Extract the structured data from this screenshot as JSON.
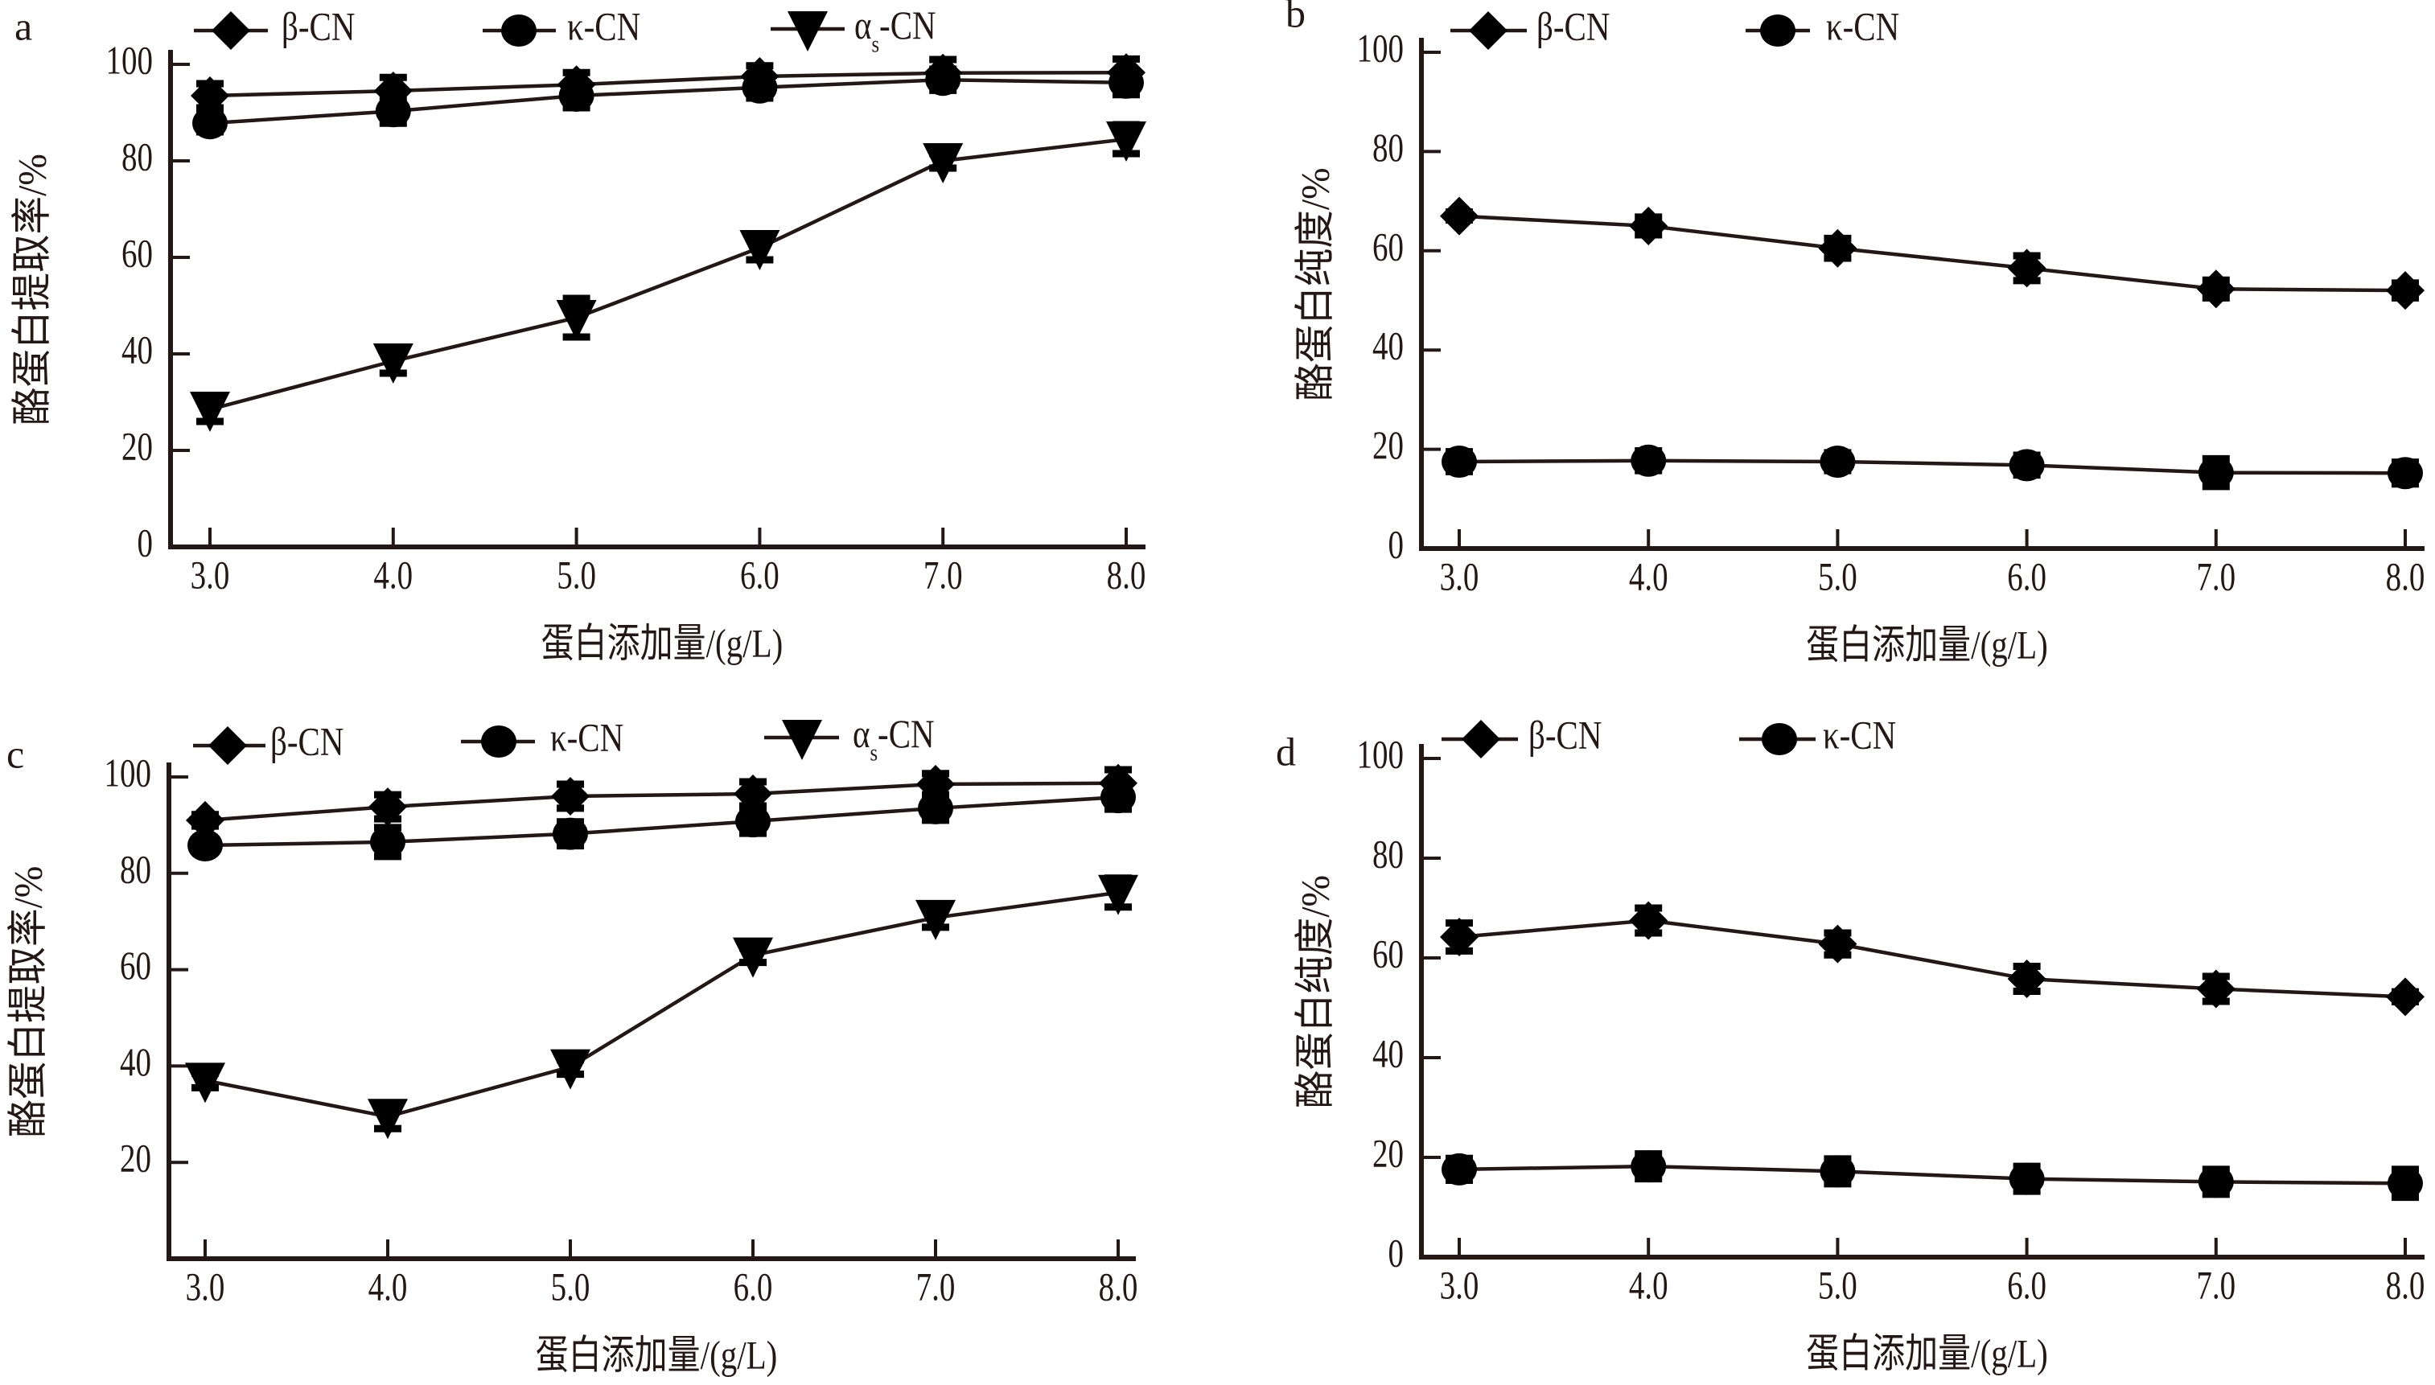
{
  "chart_data": [
    {
      "panel": "a",
      "type": "line",
      "title": "",
      "xlabel": "蛋白添加量/(g/L)",
      "ylabel": "酪蛋白提取率/%",
      "x": [
        3.0,
        4.0,
        5.0,
        6.0,
        7.0,
        8.0
      ],
      "x_tick_labels": [
        "3.0",
        "4.0",
        "5.0",
        "6.0",
        "7.0",
        "8.0"
      ],
      "y_ticks": [
        0,
        20,
        40,
        60,
        80,
        100
      ],
      "y_tick_labels": [
        "0",
        "20",
        "40",
        "60",
        "80",
        "100"
      ],
      "ylim": [
        0,
        100
      ],
      "grid": false,
      "legend_position": "top",
      "series": [
        {
          "name": "β-CN",
          "marker": "diamond",
          "values": [
            93.5,
            94.5,
            95.8,
            97.5,
            98.2,
            98.3
          ],
          "errors": [
            2.5,
            2.8,
            2.5,
            2.2,
            2.8,
            2.8
          ]
        },
        {
          "name": "κ-CN",
          "marker": "circle",
          "values": [
            87.8,
            90.3,
            93.5,
            95.2,
            96.8,
            96.2
          ],
          "errors": [
            1.8,
            2.5,
            2.5,
            2.2,
            2.2,
            2.5
          ]
        },
        {
          "name": "αs-CN",
          "name_main": "α",
          "name_sub": "s",
          "name_rest": "-CN",
          "marker": "triangle-down",
          "values": [
            28.5,
            38.5,
            47.5,
            62.0,
            80.0,
            84.5
          ],
          "errors": [
            2.5,
            2.5,
            4.0,
            2.5,
            1.5,
            3.0
          ]
        }
      ]
    },
    {
      "panel": "b",
      "type": "line",
      "title": "",
      "xlabel": "蛋白添加量/(g/L)",
      "ylabel": "酪蛋白纯度/%",
      "x": [
        3.0,
        4.0,
        5.0,
        6.0,
        7.0,
        8.0
      ],
      "x_tick_labels": [
        "3.0",
        "4.0",
        "5.0",
        "6.0",
        "7.0",
        "8.0"
      ],
      "y_ticks": [
        0,
        20,
        40,
        60,
        80,
        100
      ],
      "y_tick_labels": [
        "0",
        "20",
        "40",
        "60",
        "80",
        "100"
      ],
      "ylim": [
        0,
        100
      ],
      "grid": false,
      "legend_position": "top",
      "series": [
        {
          "name": "β-CN",
          "marker": "diamond",
          "values": [
            67.0,
            65.0,
            60.5,
            56.5,
            52.3,
            52.0
          ],
          "errors": [
            0.8,
            1.8,
            2.0,
            2.5,
            1.8,
            1.5
          ]
        },
        {
          "name": "κ-CN",
          "marker": "circle",
          "values": [
            17.5,
            17.7,
            17.5,
            16.8,
            15.3,
            15.2
          ],
          "errors": [
            2.0,
            2.0,
            1.8,
            2.0,
            2.8,
            2.2
          ]
        }
      ]
    },
    {
      "panel": "c",
      "type": "line",
      "title": "",
      "xlabel": "蛋白添加量/(g/L)",
      "ylabel": "酪蛋白提取率/%",
      "x": [
        3.0,
        4.0,
        5.0,
        6.0,
        7.0,
        8.0
      ],
      "x_tick_labels": [
        "3.0",
        "4.0",
        "5.0",
        "6.0",
        "7.0",
        "8.0"
      ],
      "y_ticks": [
        20,
        40,
        60,
        80,
        100
      ],
      "y_tick_labels": [
        "20",
        "40",
        "60",
        "80",
        "100"
      ],
      "ylim": [
        0,
        100
      ],
      "grid": false,
      "legend_position": "top",
      "series": [
        {
          "name": "β-CN",
          "marker": "diamond",
          "values": [
            91.0,
            93.8,
            96.0,
            96.5,
            98.5,
            98.7
          ],
          "errors": [
            1.2,
            2.5,
            2.5,
            2.5,
            2.2,
            2.8
          ]
        },
        {
          "name": "κ-CN",
          "marker": "circle",
          "values": [
            85.8,
            86.5,
            88.2,
            90.8,
            93.5,
            95.8
          ],
          "errors": [
            1.2,
            3.0,
            2.5,
            2.5,
            2.5,
            2.5
          ]
        },
        {
          "name": "αs-CN",
          "name_main": "α",
          "name_sub": "s",
          "name_rest": "-CN",
          "marker": "triangle-down",
          "values": [
            37.0,
            29.5,
            39.8,
            63.0,
            70.8,
            76.0
          ],
          "errors": [
            1.5,
            2.5,
            1.5,
            1.5,
            2.0,
            3.0
          ]
        }
      ]
    },
    {
      "panel": "d",
      "type": "line",
      "title": "",
      "xlabel": "蛋白添加量/(g/L)",
      "ylabel": "酪蛋白纯度/%",
      "x": [
        3.0,
        4.0,
        5.0,
        6.0,
        7.0,
        8.0
      ],
      "x_tick_labels": [
        "3.0",
        "4.0",
        "5.0",
        "6.0",
        "7.0",
        "8.0"
      ],
      "y_ticks": [
        0,
        20,
        40,
        60,
        80,
        100
      ],
      "y_tick_labels": [
        "0",
        "20",
        "40",
        "60",
        "80",
        "100"
      ],
      "ylim": [
        0,
        100
      ],
      "grid": false,
      "legend_position": "top",
      "series": [
        {
          "name": "β-CN",
          "marker": "diamond",
          "values": [
            64.2,
            67.5,
            62.8,
            55.8,
            53.8,
            52.2
          ],
          "errors": [
            2.8,
            2.5,
            2.2,
            2.5,
            2.5,
            1.0
          ]
        },
        {
          "name": "κ-CN",
          "marker": "circle",
          "values": [
            17.6,
            18.2,
            17.2,
            15.7,
            15.1,
            14.8
          ],
          "errors": [
            2.2,
            2.5,
            2.5,
            2.5,
            2.5,
            2.8
          ]
        }
      ]
    }
  ]
}
